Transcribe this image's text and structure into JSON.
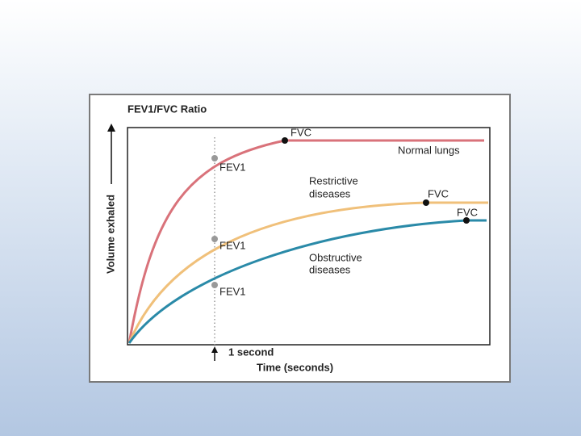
{
  "figure": {
    "title": "FEV1/FVC Ratio",
    "y_axis_label": "Volume exhaled",
    "x_axis_label": "Time (seconds)",
    "time_marker": "1 second",
    "curves": [
      {
        "name": "Normal lungs",
        "fev1_label": "FEV1",
        "fvc_label": "FVC"
      },
      {
        "name_lines": [
          "Restrictive",
          "diseases"
        ],
        "fev1_label": "FEV1",
        "fvc_label": "FVC"
      },
      {
        "name_lines": [
          "Obstructive",
          "diseases"
        ],
        "fev1_label": "FEV1",
        "fvc_label": "FVC"
      }
    ]
  }
}
